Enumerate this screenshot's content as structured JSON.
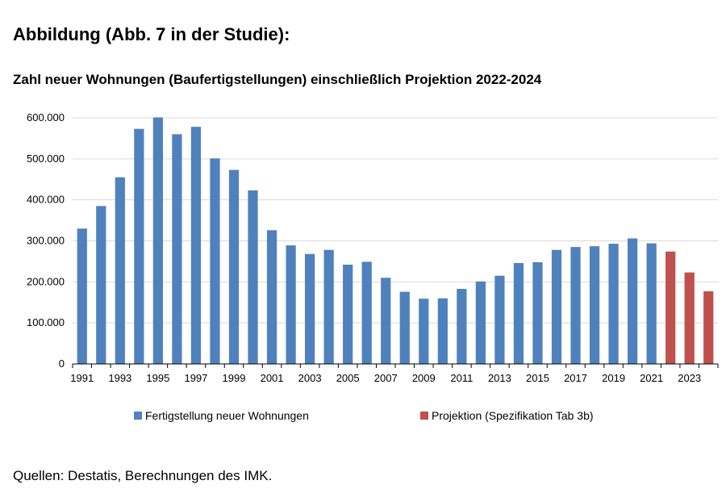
{
  "heading": "Abbildung (Abb. 7 in der Studie):",
  "source": "Quellen: Destatis, Berechnungen des IMK.",
  "chart_data": {
    "type": "bar",
    "title": "Zahl neuer Wohnungen (Baufertigstellungen) einschließlich Projektion 2022-2024",
    "xlabel": "",
    "ylabel": "",
    "ylim": [
      0,
      600000
    ],
    "grid": true,
    "legend_position": "bottom",
    "y_ticks": [
      "0",
      "100.000",
      "200.000",
      "300.000",
      "400.000",
      "500.000",
      "600.000"
    ],
    "x_ticks": [
      "1991",
      "1993",
      "1995",
      "1997",
      "1999",
      "2001",
      "2003",
      "2005",
      "2007",
      "2009",
      "2011",
      "2013",
      "2015",
      "2017",
      "2019",
      "2021",
      "2023"
    ],
    "categories": [
      "1991",
      "1992",
      "1993",
      "1994",
      "1995",
      "1996",
      "1997",
      "1998",
      "1999",
      "2000",
      "2001",
      "2002",
      "2003",
      "2004",
      "2005",
      "2006",
      "2007",
      "2008",
      "2009",
      "2010",
      "2011",
      "2012",
      "2013",
      "2014",
      "2015",
      "2016",
      "2017",
      "2018",
      "2019",
      "2020",
      "2021",
      "2022",
      "2023",
      "2024"
    ],
    "series": [
      {
        "name": "Fertigstellung neuer Wohnungen",
        "color": "#4f81bd",
        "values": [
          330000,
          385000,
          455000,
          573000,
          601000,
          560000,
          578000,
          501000,
          473000,
          423000,
          326000,
          289000,
          268000,
          278000,
          242000,
          249000,
          210000,
          176000,
          159000,
          160000,
          183000,
          201000,
          215000,
          246000,
          248000,
          278000,
          285000,
          287000,
          293000,
          306000,
          294000,
          null,
          null,
          null
        ]
      },
      {
        "name": "Projektion (Spezifikation Tab 3b)",
        "color": "#c0504d",
        "values": [
          null,
          null,
          null,
          null,
          null,
          null,
          null,
          null,
          null,
          null,
          null,
          null,
          null,
          null,
          null,
          null,
          null,
          null,
          null,
          null,
          null,
          null,
          null,
          null,
          null,
          null,
          null,
          null,
          null,
          null,
          null,
          274000,
          223000,
          177000
        ]
      }
    ]
  }
}
